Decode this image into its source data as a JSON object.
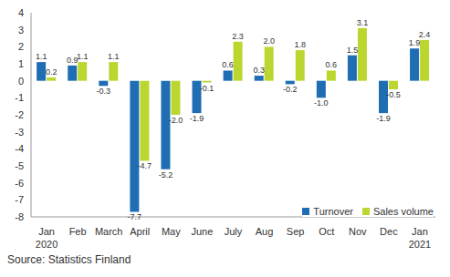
{
  "chart_data": {
    "type": "bar",
    "categories": [
      "Jan 2020",
      "Feb",
      "March",
      "April",
      "May",
      "June",
      "July",
      "Aug",
      "Sep",
      "Oct",
      "Nov",
      "Dec",
      "Jan 2021"
    ],
    "series": [
      {
        "name": "Turnover",
        "color": "#1f6eb4",
        "values": [
          1.1,
          0.9,
          -0.3,
          -7.7,
          -5.2,
          -1.9,
          0.6,
          0.3,
          -0.2,
          -1.0,
          1.5,
          -1.9,
          1.9
        ],
        "value_labels": [
          "1.1",
          "0.9",
          "-0.3",
          "-7.7",
          "-5.2",
          "-1.9",
          "0.6",
          "0.3",
          "-0.2",
          "-1.0",
          "1.5",
          "-1.9",
          "1.9"
        ]
      },
      {
        "name": "Sales volume",
        "color": "#bcd630",
        "values": [
          0.2,
          1.1,
          1.1,
          -4.7,
          -2.0,
          -0.1,
          2.3,
          2.0,
          1.8,
          0.6,
          3.1,
          -0.5,
          2.4
        ],
        "value_labels": [
          "0.2",
          "1.1",
          "1.1",
          "-4.7",
          "-2.0",
          "-0.1",
          "2.3",
          "2.0",
          "1.8",
          "0.6",
          "3.1",
          "-0.5",
          "2.4"
        ]
      }
    ],
    "ylim": [
      -8,
      4
    ],
    "yticks": [
      -8,
      -7,
      -6,
      -5,
      -4,
      -3,
      -2,
      -1,
      0,
      1,
      2,
      3,
      4
    ],
    "grid": false,
    "data_labels": true,
    "legend": "lower right",
    "source": "Source: Statistics Finland"
  }
}
